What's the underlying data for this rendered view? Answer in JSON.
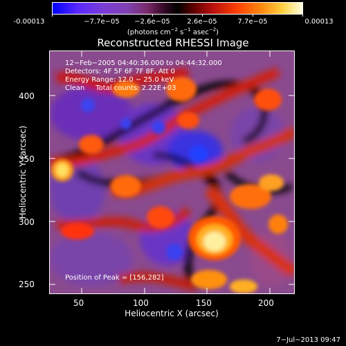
{
  "colorbar": {
    "tick_labels": [
      "-0.00013",
      "−7.7e−05",
      "−2.6e−05",
      "2.6e−05",
      "7.7e−05",
      "0.00013"
    ],
    "unit_label": "(photons cm",
    "unit_exp1": "−2",
    "unit_mid": " s",
    "unit_exp2": "−1",
    "unit_mid2": " asec",
    "unit_exp3": "−2",
    "unit_end": ")"
  },
  "title": "Reconstructed RHESSI Image",
  "info": {
    "line1": "12−Feb−2005 04:40:36.000 to 04:44:32.000",
    "line2": "Detectors: 4F 5F 6F 7F 8F, Att 0",
    "line3": "Energy Range: 12.0 − 25.0 keV",
    "line4": "Clean     Total counts: 2.22E+03",
    "peak": "Position of Peak = [156,282]"
  },
  "axes": {
    "x_title": "Heliocentric X (arcsec)",
    "y_title": "Heliocentric Y (arcsec)",
    "x_ticks": [
      "50",
      "100",
      "150",
      "200"
    ],
    "y_ticks": [
      "250",
      "300",
      "350",
      "400"
    ]
  },
  "timestamp": "7−Jul−2013 09:47",
  "colors": {
    "background": "#000000",
    "foreground": "#ffffff"
  }
}
